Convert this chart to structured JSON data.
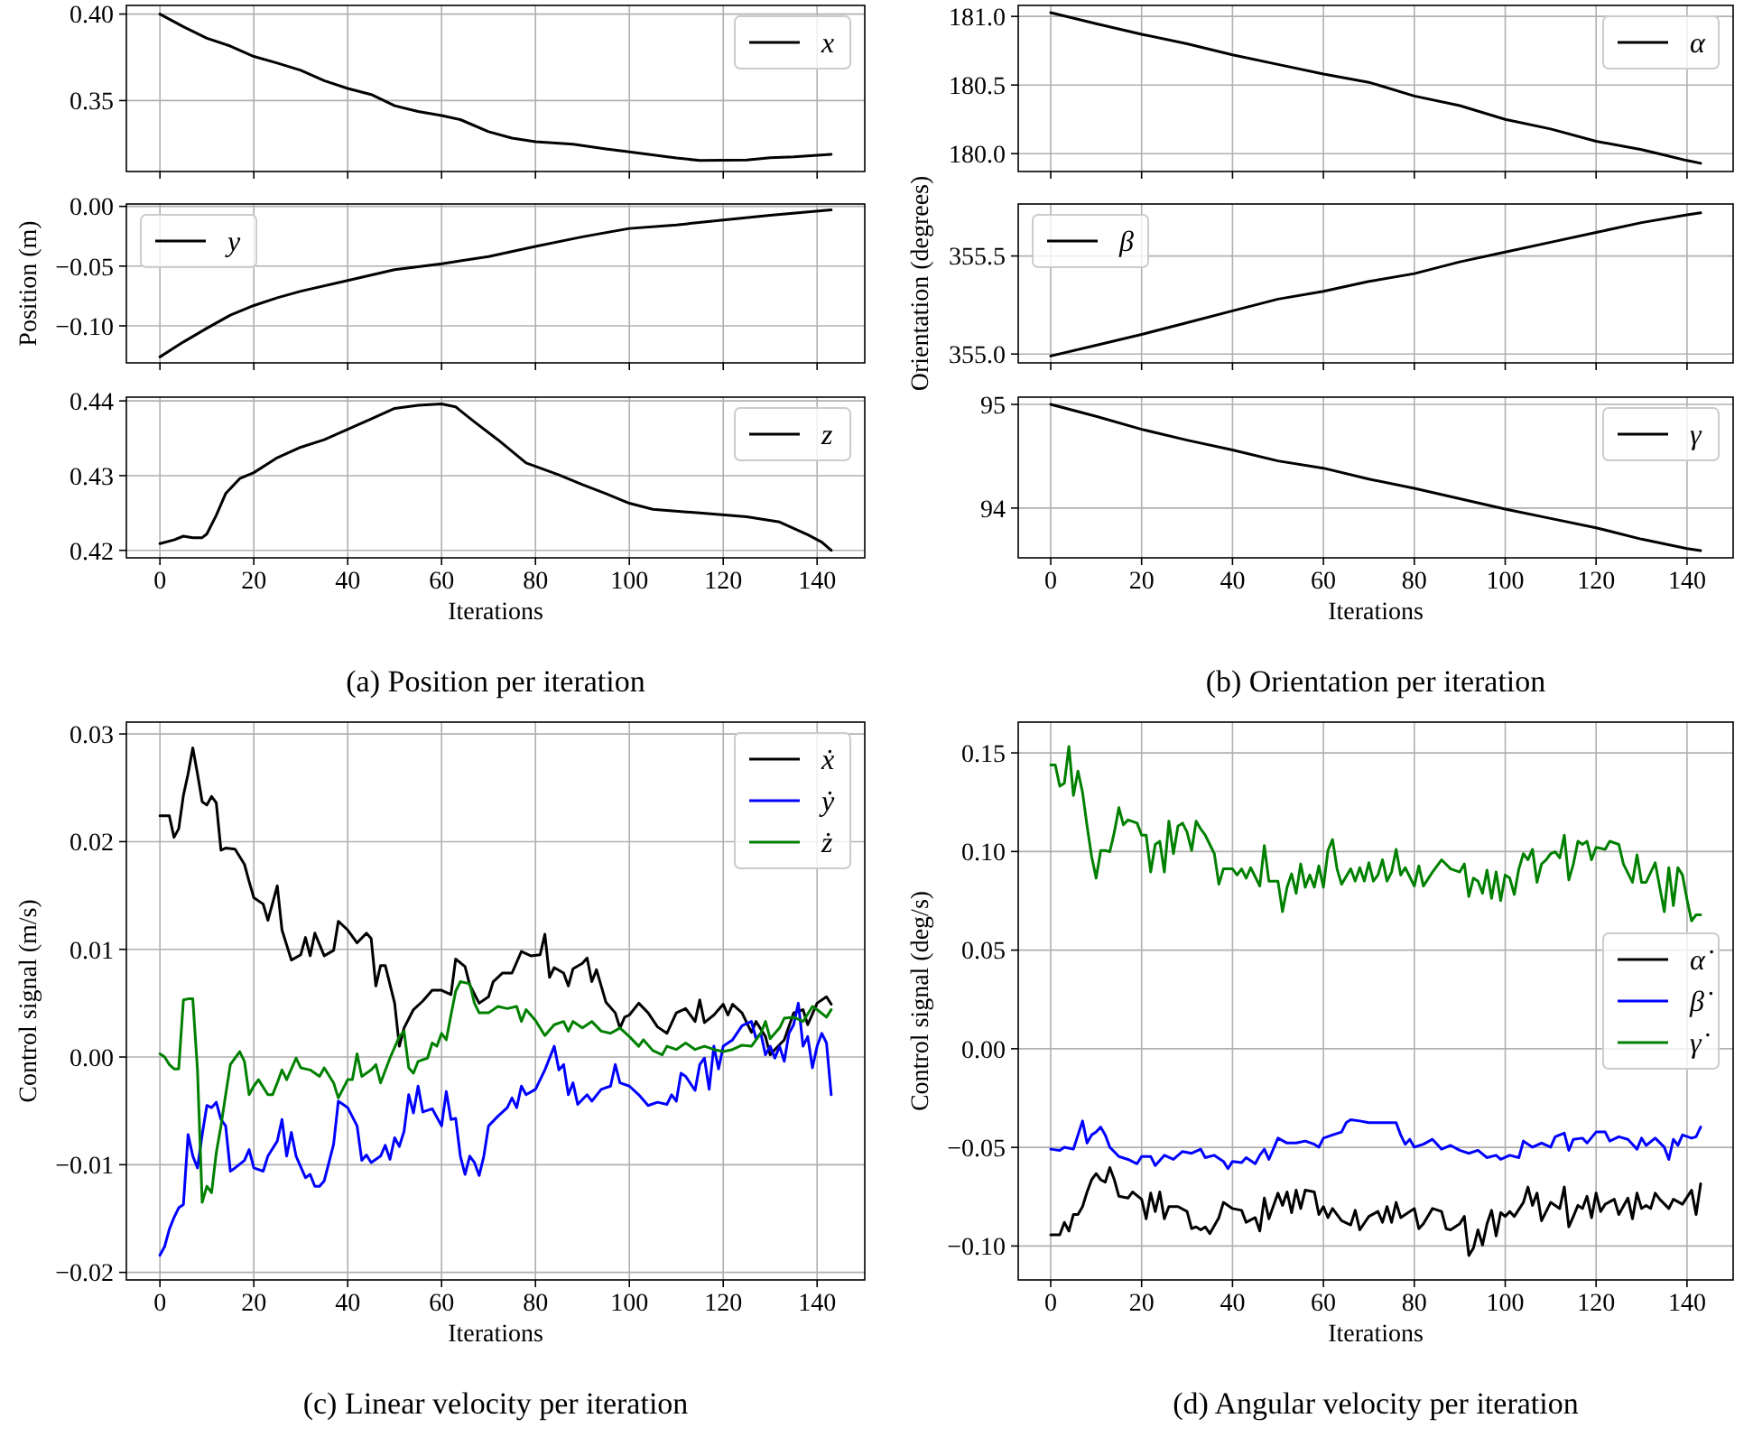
{
  "chart_data": [
    {
      "type": "line",
      "xlim": [
        -7.15,
        150.15
      ],
      "xticks": [
        0,
        20,
        40,
        60,
        80,
        100,
        120,
        140
      ],
      "ylim": [
        0.309,
        0.405
      ],
      "yticks": [
        {
          "value": 0.4,
          "label": "0.40"
        },
        0.35
      ],
      "grid": true,
      "legend": "top right",
      "tick_labels": "y",
      "series": [
        {
          "name": "x",
          "color": "#000000",
          "x": [
            0,
            5,
            10,
            15,
            20,
            25,
            30,
            35,
            40,
            45,
            50,
            55,
            60,
            64,
            70,
            75,
            80,
            88,
            95,
            100,
            110,
            115,
            125,
            130,
            135,
            143
          ],
          "values": [
            0.4,
            0.3927,
            0.386,
            0.3815,
            0.3755,
            0.3717,
            0.3675,
            0.3615,
            0.357,
            0.3535,
            0.347,
            0.3437,
            0.3413,
            0.339,
            0.332,
            0.3283,
            0.3262,
            0.3248,
            0.322,
            0.3203,
            0.3168,
            0.3154,
            0.3157,
            0.317,
            0.3175,
            0.3189
          ]
        }
      ]
    },
    {
      "type": "line",
      "xlim": [
        -7.15,
        150.15
      ],
      "xticks": [
        0,
        20,
        40,
        60,
        80,
        100,
        120,
        140
      ],
      "ylim": [
        -0.131,
        0.002
      ],
      "yticks": [
        {
          "value": 0,
          "label": "0.00"
        },
        {
          "value": -0.05,
          "label": "−0.05"
        },
        {
          "value": -0.1,
          "label": "−0.10"
        }
      ],
      "grid": true,
      "legend": "top left",
      "tick_labels": "y",
      "ylabel": "Position (m)",
      "series": [
        {
          "name": "y",
          "color": "#000000",
          "x": [
            0,
            5,
            10,
            15,
            20,
            25,
            30,
            40,
            50,
            60,
            70,
            80,
            90,
            100,
            110,
            120,
            130,
            143
          ],
          "values": [
            -0.126,
            -0.1135,
            -0.102,
            -0.091,
            -0.083,
            -0.0765,
            -0.071,
            -0.062,
            -0.053,
            -0.048,
            -0.042,
            -0.0335,
            -0.0255,
            -0.0185,
            -0.0155,
            -0.0115,
            -0.0075,
            -0.003
          ]
        }
      ]
    },
    {
      "type": "line",
      "xlim": [
        -7.15,
        150.15
      ],
      "xticks": [
        0,
        20,
        40,
        60,
        80,
        100,
        120,
        140
      ],
      "ylim": [
        0.419,
        0.4405
      ],
      "yticks": [
        0.44,
        0.43,
        0.42
      ],
      "grid": true,
      "legend": "top right",
      "xlabel": "Iterations",
      "annotations": [
        "(a) Position per iteration"
      ],
      "series": [
        {
          "name": "z",
          "color": "#000000",
          "x": [
            0,
            3,
            5,
            7,
            9,
            10,
            12,
            14,
            17,
            20,
            25,
            30,
            35,
            40,
            45,
            50,
            55,
            60,
            63,
            67,
            72,
            78,
            85,
            90,
            95,
            100,
            105,
            115,
            125,
            132,
            138,
            141,
            143
          ],
          "values": [
            0.4209,
            0.4214,
            0.4219,
            0.4217,
            0.4217,
            0.4222,
            0.4247,
            0.4276,
            0.4296,
            0.4304,
            0.4324,
            0.4338,
            0.4348,
            0.4362,
            0.4376,
            0.439,
            0.4394,
            0.4396,
            0.4392,
            0.4372,
            0.4348,
            0.4317,
            0.4301,
            0.4288,
            0.4276,
            0.4263,
            0.4255,
            0.425,
            0.4245,
            0.4238,
            0.4221,
            0.4211,
            0.42
          ]
        }
      ]
    },
    {
      "type": "line",
      "xlim": [
        -7.15,
        150.15
      ],
      "xticks": [
        0,
        20,
        40,
        60,
        80,
        100,
        120,
        140
      ],
      "ylim": [
        179.87,
        181.08
      ],
      "yticks": [
        {
          "value": 181,
          "label": "181.0"
        },
        180.5,
        {
          "value": 180,
          "label": "180.0"
        }
      ],
      "grid": true,
      "legend": "top right",
      "tick_labels": "y",
      "series": [
        {
          "name": "α",
          "color": "#000000",
          "x": [
            0,
            10,
            20,
            30,
            40,
            50,
            60,
            70,
            80,
            90,
            100,
            110,
            120,
            130,
            135,
            140,
            143
          ],
          "values": [
            181.027,
            180.947,
            180.87,
            180.8,
            180.72,
            180.65,
            180.58,
            180.52,
            180.42,
            180.35,
            180.25,
            180.18,
            180.09,
            180.03,
            179.99,
            179.95,
            179.93
          ]
        }
      ]
    },
    {
      "type": "line",
      "xlim": [
        -7.15,
        150.15
      ],
      "xticks": [
        0,
        20,
        40,
        60,
        80,
        100,
        120,
        140
      ],
      "ylim": [
        354.955,
        355.765
      ],
      "yticks": [
        355.5,
        {
          "value": 355,
          "label": "355.0"
        }
      ],
      "grid": true,
      "legend": "top left",
      "tick_labels": "y",
      "ylabel": "Orientation (degrees)",
      "series": [
        {
          "name": "β",
          "color": "#000000",
          "x": [
            0,
            10,
            20,
            30,
            40,
            50,
            60,
            70,
            80,
            90,
            100,
            110,
            120,
            130,
            140,
            143
          ],
          "values": [
            354.99,
            355.045,
            355.1,
            355.16,
            355.22,
            355.28,
            355.32,
            355.37,
            355.41,
            355.47,
            355.52,
            355.57,
            355.62,
            355.67,
            355.71,
            355.72
          ]
        }
      ]
    },
    {
      "type": "line",
      "xlim": [
        -7.15,
        150.15
      ],
      "xticks": [
        0,
        20,
        40,
        60,
        80,
        100,
        120,
        140
      ],
      "ylim": [
        93.52,
        95.07
      ],
      "yticks": [
        95,
        94
      ],
      "grid": true,
      "legend": "top right",
      "xlabel": "Iterations",
      "annotations": [
        "(b) Orientation per iteration"
      ],
      "series": [
        {
          "name": "γ",
          "color": "#000000",
          "x": [
            0,
            10,
            20,
            30,
            40,
            50,
            60,
            70,
            80,
            90,
            100,
            110,
            120,
            130,
            140,
            143
          ],
          "values": [
            95.0,
            94.885,
            94.76,
            94.655,
            94.56,
            94.455,
            94.385,
            94.28,
            94.19,
            94.09,
            93.99,
            93.9,
            93.81,
            93.7,
            93.61,
            93.59
          ]
        }
      ]
    },
    {
      "type": "line",
      "xlim": [
        -7.15,
        150.15
      ],
      "xticks": [
        0,
        20,
        40,
        60,
        80,
        100,
        120,
        140
      ],
      "ylim": [
        -0.0207,
        0.0311
      ],
      "yticks": [
        0.03,
        0.02,
        0.01,
        {
          "value": 0,
          "label": "0.00"
        },
        {
          "value": -0.01,
          "label": "−0.01"
        },
        {
          "value": -0.02,
          "label": "−0.02"
        }
      ],
      "grid": true,
      "legend": "top right",
      "xlabel": "Iterations",
      "ylabel": "Control signal (m/s)",
      "annotations": [
        "(c) Linear velocity per iteration"
      ],
      "series": [
        {
          "name": "ẋ",
          "color": "#000000",
          "x": [
            0,
            1,
            2,
            3,
            4,
            5,
            6,
            7,
            8,
            9,
            10,
            11,
            12,
            13,
            14,
            16,
            18,
            19,
            20,
            22,
            23,
            25,
            26,
            28,
            30,
            31,
            32,
            33,
            35,
            37,
            38,
            40,
            42,
            44,
            45,
            46,
            47,
            48,
            50,
            51,
            52,
            54,
            56,
            58,
            60,
            62,
            63,
            65,
            66,
            68,
            70,
            71,
            73,
            75,
            77,
            79,
            81,
            82,
            83,
            84,
            86,
            87,
            88,
            90,
            91,
            92,
            93,
            95,
            97,
            98,
            99,
            100,
            102,
            104,
            106,
            108,
            110,
            112,
            114,
            115,
            116,
            118,
            120,
            121,
            122,
            124,
            126,
            127,
            129,
            130,
            131,
            133,
            135,
            137,
            138,
            140,
            142,
            143
          ],
          "values": [
            0.0224,
            0.0224,
            0.0224,
            0.0204,
            0.0212,
            0.0243,
            0.0263,
            0.0287,
            0.0263,
            0.0237,
            0.0234,
            0.0242,
            0.0236,
            0.0192,
            0.0194,
            0.0193,
            0.0179,
            0.0163,
            0.0148,
            0.0142,
            0.0127,
            0.0159,
            0.0118,
            0.009,
            0.0095,
            0.0111,
            0.0094,
            0.0115,
            0.0094,
            0.0099,
            0.0126,
            0.0118,
            0.0106,
            0.0115,
            0.011,
            0.0066,
            0.0085,
            0.0085,
            0.005,
            0.001,
            0.0027,
            0.0044,
            0.0052,
            0.0062,
            0.0062,
            0.0058,
            0.0091,
            0.0084,
            0.0067,
            0.005,
            0.0056,
            0.007,
            0.0078,
            0.0078,
            0.0098,
            0.0094,
            0.0095,
            0.0114,
            0.0074,
            0.0083,
            0.0078,
            0.0066,
            0.0082,
            0.0087,
            0.0092,
            0.007,
            0.0081,
            0.0051,
            0.0041,
            0.0027,
            0.0037,
            0.0039,
            0.005,
            0.0041,
            0.0028,
            0.0022,
            0.0041,
            0.0045,
            0.0033,
            0.0053,
            0.0032,
            0.0039,
            0.0049,
            0.0039,
            0.0049,
            0.0041,
            0.0023,
            0.0033,
            0.0019,
            0.0002,
            0.0007,
            0.0016,
            0.0041,
            0.0044,
            0.003,
            0.005,
            0.0056,
            0.0049
          ]
        },
        {
          "name": "ẏ",
          "color": "#0000ff",
          "x": [
            0,
            1,
            2,
            3,
            4,
            5,
            6,
            7,
            8,
            9,
            10,
            11,
            12,
            13,
            14,
            15,
            16,
            18,
            19,
            20,
            22,
            23,
            25,
            26,
            27,
            28,
            29,
            31,
            32,
            33,
            34,
            35,
            36,
            37,
            38,
            39,
            40,
            42,
            43,
            44,
            45,
            47,
            48,
            49,
            50,
            51,
            52,
            53,
            54,
            55,
            56,
            58,
            60,
            61,
            62,
            63,
            64,
            65,
            66,
            67,
            68,
            69,
            70,
            72,
            74,
            75,
            76,
            77,
            78,
            80,
            82,
            84,
            85,
            86,
            87,
            88,
            89,
            91,
            92,
            94,
            96,
            97,
            98,
            100,
            102,
            104,
            106,
            108,
            109,
            110,
            111,
            112,
            114,
            115,
            116,
            117,
            118,
            119,
            120,
            122,
            124,
            126,
            127,
            128,
            129,
            130,
            131,
            132,
            133,
            134,
            135,
            136,
            137,
            138,
            139,
            140,
            141,
            142,
            143
          ],
          "values": [
            -0.0184,
            -0.0176,
            -0.016,
            -0.0149,
            -0.014,
            -0.0137,
            -0.0072,
            -0.0092,
            -0.0103,
            -0.0072,
            -0.0045,
            -0.0047,
            -0.0042,
            -0.0058,
            -0.0064,
            -0.0106,
            -0.0103,
            -0.0096,
            -0.0086,
            -0.0103,
            -0.0106,
            -0.0092,
            -0.0078,
            -0.0058,
            -0.0092,
            -0.007,
            -0.0092,
            -0.0112,
            -0.0109,
            -0.012,
            -0.012,
            -0.0115,
            -0.0098,
            -0.0081,
            -0.0041,
            -0.0044,
            -0.0047,
            -0.0064,
            -0.0096,
            -0.0091,
            -0.0098,
            -0.0092,
            -0.0082,
            -0.0095,
            -0.0075,
            -0.0083,
            -0.0069,
            -0.0035,
            -0.0052,
            -0.0027,
            -0.0051,
            -0.0048,
            -0.0064,
            -0.0032,
            -0.0058,
            -0.0057,
            -0.0092,
            -0.0109,
            -0.0092,
            -0.0098,
            -0.011,
            -0.0092,
            -0.0064,
            -0.0055,
            -0.0047,
            -0.0038,
            -0.0047,
            -0.0027,
            -0.0035,
            -0.003,
            -0.0012,
            0.001,
            -0.0012,
            -0.0007,
            -0.0035,
            -0.0024,
            -0.0044,
            -0.0035,
            -0.0041,
            -0.003,
            -0.0027,
            -0.0007,
            -0.0024,
            -0.0027,
            -0.0035,
            -0.0045,
            -0.0042,
            -0.0044,
            -0.0035,
            -0.0041,
            -0.0015,
            -0.0018,
            -0.0031,
            -0.0007,
            -0.0001,
            -0.003,
            0.001,
            -0.0011,
            0.001,
            0.0016,
            0.0029,
            0.0033,
            0.0017,
            0.0022,
            0.0002,
            0.001,
            -0.0001,
            0.001,
            -0.0004,
            0.0022,
            0.003,
            0.005,
            0.001,
            0.0019,
            -0.001,
            0.001,
            0.0022,
            0.0013,
            -0.0035
          ]
        },
        {
          "name": "ż",
          "color": "#008000",
          "x": [
            0,
            1,
            2,
            3,
            4,
            5,
            6,
            7,
            8,
            9,
            10,
            11,
            12,
            13,
            14,
            15,
            16,
            17,
            18,
            19,
            20,
            21,
            23,
            24,
            25,
            26,
            27,
            29,
            30,
            32,
            34,
            35,
            37,
            38,
            40,
            41,
            42,
            43,
            45,
            46,
            47,
            49,
            51,
            52,
            53,
            54,
            55,
            57,
            58,
            59,
            60,
            61,
            62,
            63,
            64,
            66,
            67,
            68,
            70,
            72,
            74,
            76,
            77,
            78,
            80,
            82,
            84,
            86,
            87,
            88,
            90,
            92,
            94,
            96,
            98,
            100,
            102,
            103,
            105,
            107,
            108,
            110,
            112,
            114,
            116,
            118,
            120,
            122,
            124,
            126,
            128,
            129,
            130,
            132,
            133,
            135,
            137,
            139,
            140,
            142,
            143
          ],
          "values": [
            0.0003,
            0.0,
            -0.0007,
            -0.0011,
            -0.0011,
            0.0053,
            0.0054,
            0.0054,
            -0.0012,
            -0.0135,
            -0.012,
            -0.0126,
            -0.0089,
            -0.0064,
            -0.0035,
            -0.0007,
            -0.0001,
            0.0005,
            -0.0004,
            -0.0035,
            -0.0027,
            -0.0021,
            -0.0035,
            -0.0035,
            -0.0024,
            -0.0012,
            -0.0021,
            -0.0001,
            -0.001,
            -0.0012,
            -0.0018,
            -0.001,
            -0.0024,
            -0.0038,
            -0.0021,
            -0.0021,
            0.0003,
            -0.0018,
            -0.0012,
            -0.0007,
            -0.0024,
            -0.0001,
            0.0019,
            0.0024,
            -0.001,
            -0.0015,
            -0.0004,
            -0.0001,
            0.0013,
            0.001,
            0.0022,
            0.0016,
            0.0039,
            0.0061,
            0.007,
            0.0068,
            0.005,
            0.0041,
            0.0041,
            0.0047,
            0.0045,
            0.0047,
            0.0033,
            0.0044,
            0.0034,
            0.002,
            0.003,
            0.0033,
            0.0024,
            0.0033,
            0.0027,
            0.0033,
            0.0024,
            0.0022,
            0.0027,
            0.0019,
            0.001,
            0.0016,
            0.0006,
            0.0002,
            0.001,
            0.0007,
            0.0013,
            0.0007,
            0.001,
            0.0007,
            0.0005,
            0.0007,
            0.0011,
            0.001,
            0.0022,
            0.0033,
            0.0017,
            0.0027,
            0.0036,
            0.0037,
            0.0033,
            0.0047,
            0.0044,
            0.0037,
            0.0044
          ]
        }
      ]
    },
    {
      "type": "line",
      "xlim": [
        -7.15,
        150.15
      ],
      "xticks": [
        0,
        20,
        40,
        60,
        80,
        100,
        120,
        140
      ],
      "ylim": [
        -0.1172,
        0.1656
      ],
      "yticks": [
        0.15,
        {
          "value": 0.1,
          "label": "0.10"
        },
        0.05,
        {
          "value": 0,
          "label": "0.00"
        },
        {
          "value": -0.05,
          "label": "−0.05"
        },
        {
          "value": -0.1,
          "label": "−0.10"
        }
      ],
      "grid": true,
      "legend": "right",
      "xlabel": "Iterations",
      "ylabel": "Control signal (deg/s)",
      "annotations": [
        "(d) Angular velocity per iteration"
      ],
      "series": [
        {
          "name": "α̇",
          "color": "#000000",
          "x": [
            0,
            2,
            3,
            4,
            5,
            6,
            7,
            8,
            9,
            10,
            11,
            12,
            13,
            14,
            15,
            17,
            18,
            20,
            21,
            22,
            23,
            24,
            25,
            26,
            28,
            30,
            31,
            32,
            33,
            34,
            35,
            37,
            38,
            40,
            42,
            43,
            45,
            46,
            47,
            48,
            50,
            51,
            52,
            53,
            54,
            55,
            56,
            58,
            59,
            60,
            61,
            62,
            64,
            66,
            67,
            68,
            70,
            72,
            73,
            74,
            75,
            76,
            77,
            79,
            80,
            81,
            82,
            84,
            86,
            87,
            88,
            90,
            91,
            92,
            93,
            94,
            95,
            96,
            97,
            98,
            99,
            100,
            101,
            102,
            104,
            105,
            106,
            107,
            108,
            110,
            112,
            113,
            114,
            115,
            116,
            117,
            118,
            119,
            120,
            121,
            122,
            124,
            125,
            127,
            128,
            129,
            130,
            131,
            132,
            133,
            134,
            136,
            137,
            139,
            141,
            142,
            143
          ],
          "values": [
            -0.0943,
            -0.0943,
            -0.088,
            -0.0924,
            -0.084,
            -0.084,
            -0.08,
            -0.0726,
            -0.0664,
            -0.0633,
            -0.0664,
            -0.0676,
            -0.0602,
            -0.0664,
            -0.0748,
            -0.0757,
            -0.0726,
            -0.0763,
            -0.0862,
            -0.0732,
            -0.0825,
            -0.0726,
            -0.0862,
            -0.08,
            -0.08,
            -0.0825,
            -0.0912,
            -0.0903,
            -0.0918,
            -0.0903,
            -0.0937,
            -0.0856,
            -0.0779,
            -0.081,
            -0.0819,
            -0.088,
            -0.0856,
            -0.0924,
            -0.0757,
            -0.0862,
            -0.0732,
            -0.0794,
            -0.0726,
            -0.0831,
            -0.0717,
            -0.081,
            -0.0717,
            -0.0726,
            -0.084,
            -0.08,
            -0.0856,
            -0.081,
            -0.0872,
            -0.0893,
            -0.0819,
            -0.0918,
            -0.085,
            -0.0825,
            -0.088,
            -0.08,
            -0.088,
            -0.0779,
            -0.0856,
            -0.0825,
            -0.081,
            -0.0912,
            -0.0887,
            -0.081,
            -0.0825,
            -0.0912,
            -0.0918,
            -0.0887,
            -0.085,
            -0.1048,
            -0.1011,
            -0.0918,
            -0.0995,
            -0.0887,
            -0.0819,
            -0.0949,
            -0.0831,
            -0.085,
            -0.0825,
            -0.085,
            -0.0779,
            -0.0701,
            -0.0794,
            -0.0732,
            -0.0872,
            -0.0779,
            -0.081,
            -0.0701,
            -0.0903,
            -0.085,
            -0.0794,
            -0.081,
            -0.0748,
            -0.0856,
            -0.0732,
            -0.0825,
            -0.0788,
            -0.0763,
            -0.084,
            -0.0757,
            -0.0862,
            -0.0732,
            -0.081,
            -0.0794,
            -0.081,
            -0.0732,
            -0.0763,
            -0.081,
            -0.0763,
            -0.0788,
            -0.0717,
            -0.084,
            -0.0685
          ]
        },
        {
          "name": "β̇",
          "color": "#0000ff",
          "x": [
            0,
            2,
            3,
            5,
            6,
            7,
            8,
            9,
            10,
            11,
            12,
            13,
            15,
            17,
            19,
            20,
            22,
            23,
            25,
            27,
            29,
            31,
            33,
            34,
            36,
            38,
            39,
            40,
            42,
            43,
            45,
            46,
            47,
            48,
            50,
            52,
            54,
            56,
            58,
            59,
            60,
            62,
            64,
            65,
            66,
            68,
            70,
            72,
            76,
            77,
            78,
            79,
            80,
            82,
            84,
            86,
            88,
            90,
            92,
            94,
            96,
            98,
            99,
            101,
            103,
            104,
            106,
            108,
            110,
            111,
            113,
            114,
            115,
            117,
            118,
            120,
            122,
            123,
            125,
            127,
            129,
            130,
            131,
            133,
            135,
            136,
            137,
            138,
            139,
            141,
            142,
            143
          ],
          "values": [
            -0.0509,
            -0.0515,
            -0.0499,
            -0.0509,
            -0.0437,
            -0.0366,
            -0.0478,
            -0.0437,
            -0.0422,
            -0.0397,
            -0.0437,
            -0.0499,
            -0.0546,
            -0.0561,
            -0.0583,
            -0.0546,
            -0.0546,
            -0.0592,
            -0.054,
            -0.0561,
            -0.0521,
            -0.053,
            -0.0509,
            -0.0552,
            -0.054,
            -0.0571,
            -0.0608,
            -0.0571,
            -0.0577,
            -0.0552,
            -0.0583,
            -0.054,
            -0.0509,
            -0.0561,
            -0.0453,
            -0.0478,
            -0.0478,
            -0.0468,
            -0.0484,
            -0.0499,
            -0.0453,
            -0.0437,
            -0.0422,
            -0.0375,
            -0.036,
            -0.0366,
            -0.0375,
            -0.0375,
            -0.0375,
            -0.0437,
            -0.0484,
            -0.0459,
            -0.0499,
            -0.0484,
            -0.0459,
            -0.0509,
            -0.049,
            -0.0515,
            -0.053,
            -0.0515,
            -0.0552,
            -0.054,
            -0.0561,
            -0.054,
            -0.0552,
            -0.0468,
            -0.0499,
            -0.0478,
            -0.0499,
            -0.0446,
            -0.0428,
            -0.0515,
            -0.0459,
            -0.0453,
            -0.0478,
            -0.0422,
            -0.0422,
            -0.0468,
            -0.0446,
            -0.0459,
            -0.0509,
            -0.0453,
            -0.049,
            -0.0453,
            -0.0499,
            -0.0561,
            -0.0459,
            -0.049,
            -0.0437,
            -0.0453,
            -0.0446,
            -0.0397
          ]
        },
        {
          "name": "γ̇",
          "color": "#008000",
          "x": [
            0,
            1,
            2,
            3,
            4,
            5,
            6,
            7,
            8,
            9,
            10,
            11,
            12,
            13,
            14,
            15,
            16,
            17,
            19,
            20,
            21,
            22,
            23,
            24,
            25,
            26,
            27,
            28,
            29,
            30,
            31,
            32,
            33,
            34,
            36,
            37,
            38,
            40,
            41,
            42,
            43,
            44,
            46,
            47,
            48,
            50,
            51,
            52,
            53,
            54,
            55,
            56,
            57,
            58,
            59,
            60,
            61,
            62,
            63,
            64,
            66,
            67,
            68,
            69,
            70,
            71,
            72,
            73,
            74,
            75,
            76,
            77,
            78,
            80,
            81,
            82,
            84,
            86,
            88,
            90,
            91,
            92,
            93,
            94,
            95,
            96,
            97,
            98,
            99,
            100,
            101,
            102,
            103,
            104,
            105,
            106,
            107,
            108,
            109,
            110,
            111,
            112,
            113,
            114,
            115,
            116,
            117,
            118,
            119,
            120,
            122,
            123,
            125,
            126,
            128,
            129,
            130,
            131,
            133,
            134,
            135,
            136,
            137,
            138,
            139,
            140,
            141,
            142,
            143
          ],
          "values": [
            0.1439,
            0.1439,
            0.1331,
            0.1346,
            0.1532,
            0.1284,
            0.1408,
            0.13,
            0.1129,
            0.0974,
            0.0865,
            0.1005,
            0.1005,
            0.0999,
            0.1098,
            0.1222,
            0.1135,
            0.116,
            0.1144,
            0.1083,
            0.1083,
            0.0896,
            0.1036,
            0.1052,
            0.0896,
            0.1154,
            0.0989,
            0.1129,
            0.1144,
            0.1098,
            0.1005,
            0.1154,
            0.1114,
            0.1083,
            0.0989,
            0.0834,
            0.0912,
            0.0912,
            0.0881,
            0.0912,
            0.0865,
            0.0918,
            0.0825,
            0.103,
            0.085,
            0.085,
            0.0695,
            0.0819,
            0.0887,
            0.0788,
            0.0937,
            0.0819,
            0.0881,
            0.0819,
            0.0927,
            0.0819,
            0.1005,
            0.1061,
            0.0912,
            0.0834,
            0.0912,
            0.085,
            0.0918,
            0.085,
            0.0943,
            0.085,
            0.0881,
            0.0958,
            0.085,
            0.0896,
            0.1011,
            0.0881,
            0.0918,
            0.0825,
            0.0927,
            0.0825,
            0.0896,
            0.0958,
            0.0912,
            0.0896,
            0.0937,
            0.0772,
            0.0865,
            0.085,
            0.0788,
            0.0906,
            0.0763,
            0.0896,
            0.0751,
            0.0881,
            0.0865,
            0.0782,
            0.0912,
            0.0989,
            0.0958,
            0.1011,
            0.0844,
            0.0937,
            0.0958,
            0.0989,
            0.0999,
            0.0968,
            0.1083,
            0.0856,
            0.0937,
            0.1052,
            0.1036,
            0.1052,
            0.0958,
            0.1021,
            0.1011,
            0.1052,
            0.1036,
            0.0937,
            0.0844,
            0.0983,
            0.0844,
            0.0844,
            0.0943,
            0.0819,
            0.0695,
            0.0918,
            0.0726,
            0.0918,
            0.0881,
            0.0757,
            0.0648,
            0.0679,
            0.0679
          ]
        }
      ]
    }
  ]
}
